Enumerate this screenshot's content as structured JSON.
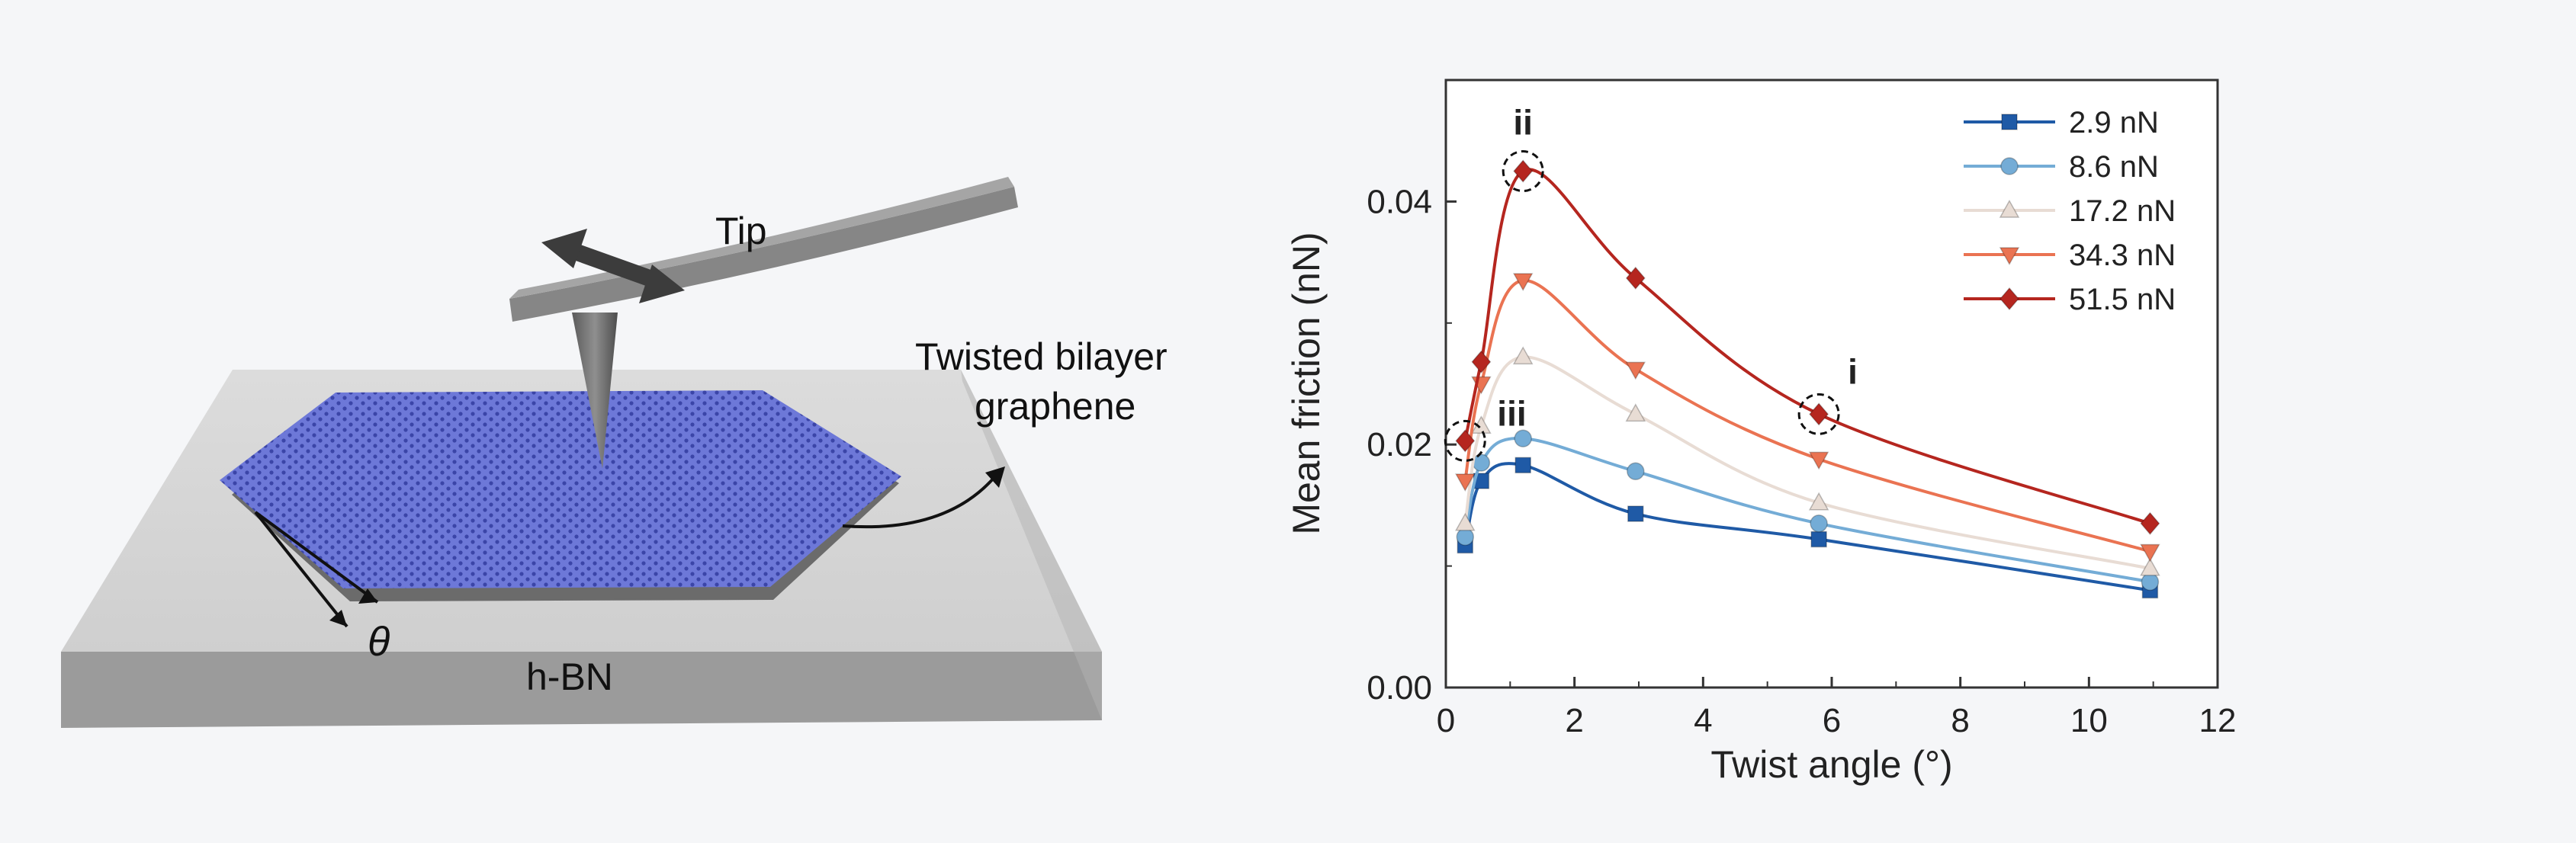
{
  "schematic": {
    "labels": {
      "tip": "Tip",
      "twisted_line1": "Twisted bilayer",
      "twisted_line2": "graphene",
      "substrate": "h-BN",
      "angle": "θ"
    },
    "colors": {
      "lattice": "#5c68d0",
      "substrate": "#c9c9c9",
      "tip": "#8d8d8d"
    }
  },
  "chart_data": {
    "type": "line",
    "xlabel": "Twist angle (°)",
    "ylabel": "Mean friction (nN)",
    "xlim": [
      0,
      12
    ],
    "ylim": [
      0,
      0.05
    ],
    "xticks": [
      "0",
      "2",
      "4",
      "6",
      "8",
      "10",
      "12"
    ],
    "yticks": [
      "0.00",
      "0.02",
      "0.04"
    ],
    "ytick_values": [
      0,
      0.02,
      0.04
    ],
    "grid": false,
    "legend_position": "top-right",
    "x": [
      0.3,
      0.55,
      1.2,
      2.95,
      5.8,
      10.95
    ],
    "series": [
      {
        "name": "2.9 nN",
        "marker": "square",
        "color": "#1f5aa6",
        "values": [
          0.0117,
          0.017,
          0.0183,
          0.0143,
          0.0122,
          0.008
        ]
      },
      {
        "name": "8.6 nN",
        "marker": "circle",
        "color": "#74acd6",
        "values": [
          0.0124,
          0.0185,
          0.0205,
          0.0178,
          0.0135,
          0.0087
        ]
      },
      {
        "name": "17.2 nN",
        "marker": "triangle-up",
        "color": "#e8dcd4",
        "values": [
          0.0135,
          0.0215,
          0.0272,
          0.0225,
          0.0152,
          0.0098
        ]
      },
      {
        "name": "34.3 nN",
        "marker": "triangle-down",
        "color": "#ea7352",
        "values": [
          0.017,
          0.025,
          0.0335,
          0.0262,
          0.0188,
          0.0112
        ]
      },
      {
        "name": "51.5 nN",
        "marker": "diamond",
        "color": "#b5261f",
        "values": [
          0.0203,
          0.0268,
          0.0425,
          0.0337,
          0.0225,
          0.0135
        ]
      }
    ],
    "annotations": [
      {
        "text": "ii",
        "x": 1.2,
        "y": 0.0425
      },
      {
        "text": "iii",
        "x": 0.3,
        "y": 0.0203
      },
      {
        "text": "i",
        "x": 5.8,
        "y": 0.0225
      }
    ]
  }
}
